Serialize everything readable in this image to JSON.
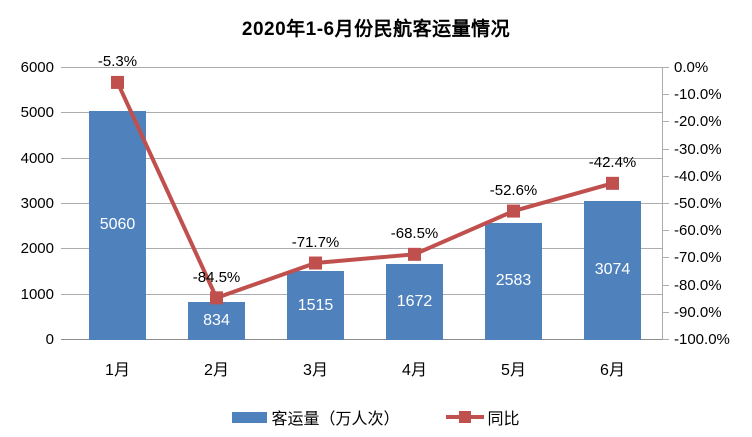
{
  "chart_data": {
    "type": "combo",
    "title": "2020年1-6月份民航客运量情况",
    "categories": [
      "1月",
      "2月",
      "3月",
      "4月",
      "5月",
      "6月"
    ],
    "series": [
      {
        "name": "客运量（万人次）",
        "type": "bar",
        "axis": "left",
        "color": "#4F81BD",
        "values": [
          5060,
          834,
          1515,
          1672,
          2583,
          3074
        ],
        "labels": [
          "5060",
          "834",
          "1515",
          "1672",
          "2583",
          "3074"
        ]
      },
      {
        "name": "同比",
        "type": "line",
        "axis": "right",
        "color": "#C0504D",
        "values": [
          -5.3,
          -84.5,
          -71.7,
          -68.5,
          -52.6,
          -42.4
        ],
        "labels": [
          "-5.3%",
          "-84.5%",
          "-71.7%",
          "-68.5%",
          "-52.6%",
          "-42.4%"
        ]
      }
    ],
    "left_axis": {
      "min": 0,
      "max": 6000,
      "step": 1000,
      "tick_labels": [
        "0",
        "1000",
        "2000",
        "3000",
        "4000",
        "5000",
        "6000"
      ]
    },
    "right_axis": {
      "min": -100,
      "max": 0,
      "step": 10,
      "tick_labels": [
        "0.0%",
        "-10.0%",
        "-20.0%",
        "-30.0%",
        "-40.0%",
        "-50.0%",
        "-60.0%",
        "-70.0%",
        "-80.0%",
        "-90.0%",
        "-100.0%"
      ]
    },
    "grid": true,
    "legend_position": "bottom"
  },
  "colors": {
    "bar": "#4F81BD",
    "line": "#C0504D",
    "gridline": "#ACACAC",
    "axis_line": "#8C8C8C",
    "bar_label_text": "#FFFFFF",
    "text": "#000000",
    "background": "#FFFFFF"
  }
}
